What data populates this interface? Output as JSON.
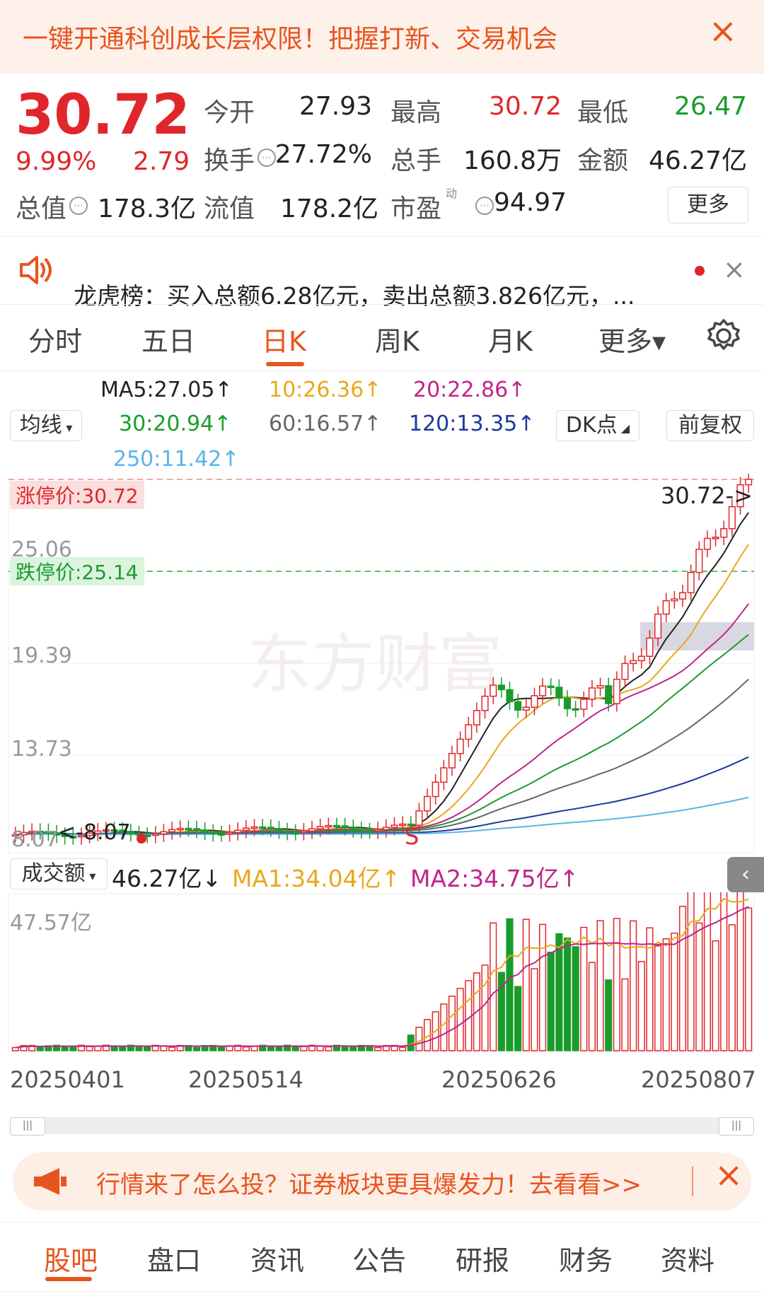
{
  "banner": {
    "text": "一键开通科创成长层权限！把握打新、交易机会",
    "close": "×"
  },
  "quote": {
    "price": "30.72",
    "change_pct": "9.99%",
    "change": "2.79",
    "rows": [
      [
        {
          "label": "今开",
          "value": "27.93",
          "color": "#222"
        },
        {
          "label": "最高",
          "value": "30.72",
          "color": "#e0262b"
        },
        {
          "label": "最低",
          "value": "26.47",
          "color": "#1a9c2c"
        }
      ],
      [
        {
          "label": "换手",
          "value": "27.72%",
          "color": "#222"
        },
        {
          "label": "总手",
          "value": "160.8万",
          "color": "#222"
        },
        {
          "label": "金额",
          "value": "46.27亿",
          "color": "#222"
        }
      ],
      [
        {
          "label": "总值",
          "value": "178.3亿",
          "color": "#222"
        },
        {
          "label": "流值",
          "value": "178.2亿",
          "color": "#222"
        },
        {
          "label": "市盈",
          "value": "94.97",
          "color": "#222"
        }
      ]
    ],
    "pe_sup": "动",
    "more": "更多"
  },
  "notice": {
    "text": "龙虎榜：买入总额6.28亿元，卖出总额3.826亿元，..."
  },
  "tabs": [
    "分时",
    "五日",
    "日K",
    "周K",
    "月K",
    "更多▾"
  ],
  "ma": {
    "select": "均线",
    "items": [
      {
        "text": "MA5:27.05↑",
        "color": "#222"
      },
      {
        "text": "10:26.36↑",
        "color": "#e8a81d"
      },
      {
        "text": "20:22.86↑",
        "color": "#c0248a"
      },
      {
        "text": "30:20.94↑",
        "color": "#1a9c2c"
      },
      {
        "text": "60:16.57↑",
        "color": "#666"
      },
      {
        "text": "120:13.35↑",
        "color": "#1d3a9c"
      },
      {
        "text": "250:11.42↑",
        "color": "#5ab4e8"
      }
    ],
    "dk": "DK点",
    "fq": "前复权"
  },
  "kchart": {
    "limit_up": "涨停价:30.72",
    "limit_down": "跌停价:25.14",
    "axis": [
      "30.72",
      "25.06",
      "19.39",
      "13.73",
      "8.07"
    ],
    "price_tag": "30.72->",
    "low_tag": "<-8.07",
    "s_mark": "S"
  },
  "volume": {
    "select": "成交额",
    "value": "46.27亿↓",
    "ma1": "MA1:34.04亿↑",
    "ma2": "MA2:34.75亿↑",
    "max": "47.57亿",
    "dates": [
      "20250401",
      "20250514",
      "20250626",
      "20250807"
    ]
  },
  "promo": {
    "text": "行情来了怎么投？证券板块更具爆发力！去看看>>"
  },
  "bottom_tabs": [
    "股吧",
    "盘口",
    "资讯",
    "公告",
    "研报",
    "财务",
    "资料"
  ]
}
